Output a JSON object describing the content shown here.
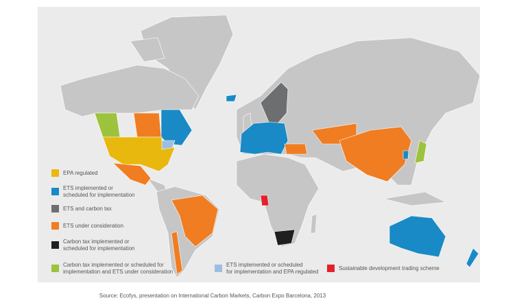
{
  "legend": [
    {
      "lines": [
        "EPA regulated"
      ],
      "color": "#e8b80e"
    },
    {
      "lines": [
        "ETS implemented or",
        "scheduled for implementation"
      ],
      "color": "#1a8ac6"
    },
    {
      "lines": [
        "ETS and carbon tax"
      ],
      "color": "#6d6e70"
    },
    {
      "lines": [
        "ETS under consideration"
      ],
      "color": "#f07d22"
    },
    {
      "lines": [
        "Carbon tax implemented or",
        "scheduled for implementation"
      ],
      "color": "#1f1f1f"
    },
    {
      "lines": [
        "Carbon tax implemented or scheduled for",
        "implementation and ETS under consideration"
      ],
      "color": "#9dc23b"
    },
    {
      "lines": [
        "ETS implemented or scheduled",
        "for implementation and EPA regulated"
      ],
      "color": "#9ebedf"
    },
    {
      "lines": [
        "Sustainable development trading scheme"
      ],
      "color": "#e5202e"
    }
  ],
  "source": "Source: Ecofys, presentation on International Carbon Markets, Carbon Expo Barcelona, 2013"
}
